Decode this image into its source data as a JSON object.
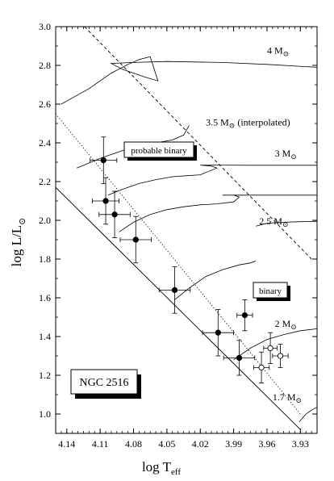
{
  "chart_data": {
    "type": "scatter",
    "title": "",
    "xlabel_main": "log T",
    "xlabel_sub": "eff",
    "ylabel_main": "log L/L",
    "ylabel_sub": "⊙",
    "xlim": [
      4.15,
      3.915
    ],
    "ylim": [
      0.9,
      3.0
    ],
    "x_tick_values": [
      4.14,
      4.11,
      4.08,
      4.05,
      4.02,
      3.99,
      3.96,
      3.93
    ],
    "x_tick_labels": [
      "4.14",
      "4.11",
      "4.08",
      "4.05",
      "4.02",
      "3.99",
      "3.96",
      "3.93"
    ],
    "y_tick_values": [
      1.0,
      1.2,
      1.4,
      1.6,
      1.8,
      2.0,
      2.2,
      2.4,
      2.6,
      2.8,
      3.0
    ],
    "y_tick_labels": [
      "1.0",
      "1.2",
      "1.4",
      "1.6",
      "1.8",
      "2.0",
      "2.2",
      "2.4",
      "2.6",
      "2.8",
      "3.0"
    ],
    "grid": false,
    "legend": "none",
    "annotations": {
      "cluster": "NGC 2516",
      "probable_binary": "probable binary",
      "binary": "binary"
    },
    "track_labels": [
      {
        "text": "4 M",
        "sub": "⊙",
        "x": 3.96,
        "y": 2.86
      },
      {
        "text": "3.5 M",
        "sub": "⊙",
        "suffix": "  (interpolated)",
        "x": 4.015,
        "y": 2.49
      },
      {
        "text": "3 M",
        "sub": "⊙",
        "x": 3.953,
        "y": 2.33
      },
      {
        "text": "2.5 M",
        "sub": "⊙",
        "x": 3.967,
        "y": 1.98
      },
      {
        "text": "2 M",
        "sub": "⊙",
        "x": 3.953,
        "y": 1.45
      },
      {
        "text": "1.7 M",
        "sub": "⊙",
        "x": 3.955,
        "y": 1.07
      }
    ],
    "series": [
      {
        "marker": "filled",
        "points": [
          {
            "x": 4.107,
            "y": 2.31,
            "xerr": 0.012,
            "yerr": 0.12
          },
          {
            "x": 4.105,
            "y": 2.1,
            "xerr": 0.012,
            "yerr": 0.12
          },
          {
            "x": 4.097,
            "y": 2.03,
            "xerr": 0.014,
            "yerr": 0.12
          },
          {
            "x": 4.078,
            "y": 1.9,
            "xerr": 0.014,
            "yerr": 0.12
          },
          {
            "x": 4.043,
            "y": 1.64,
            "xerr": 0.014,
            "yerr": 0.12
          },
          {
            "x": 4.004,
            "y": 1.42,
            "xerr": 0.014,
            "yerr": 0.12
          },
          {
            "x": 3.98,
            "y": 1.51,
            "xerr": 0.007,
            "yerr": 0.08
          },
          {
            "x": 3.985,
            "y": 1.29,
            "xerr": 0.014,
            "yerr": 0.09
          }
        ]
      },
      {
        "marker": "open",
        "points": [
          {
            "x": 3.957,
            "y": 1.34,
            "xerr": 0.006,
            "yerr": 0.08
          },
          {
            "x": 3.965,
            "y": 1.24,
            "xerr": 0.007,
            "yerr": 0.08
          },
          {
            "x": 3.948,
            "y": 1.3,
            "xerr": 0.007,
            "yerr": 0.06
          }
        ]
      }
    ],
    "lines": [
      {
        "name": "zams",
        "style": "solid",
        "points": [
          [
            4.15,
            2.17
          ],
          [
            3.93,
            0.92
          ]
        ]
      },
      {
        "name": "dotted",
        "style": "dotted",
        "points": [
          [
            4.15,
            2.55
          ],
          [
            3.93,
            1.0
          ]
        ]
      },
      {
        "name": "dashed",
        "style": "dashed",
        "points": [
          [
            4.124,
            3.0
          ],
          [
            3.92,
            1.8
          ]
        ]
      }
    ],
    "tracks": [
      {
        "mass": "4",
        "points": [
          [
            4.145,
            2.6
          ],
          [
            4.12,
            2.68
          ],
          [
            4.1,
            2.76
          ],
          [
            4.085,
            2.805
          ],
          [
            4.075,
            2.83
          ],
          [
            4.065,
            2.845
          ],
          [
            4.058,
            2.72
          ],
          [
            4.07,
            2.74
          ],
          [
            4.08,
            2.76
          ],
          [
            4.09,
            2.78
          ],
          [
            4.1,
            2.81
          ],
          [
            4.08,
            2.815
          ],
          [
            4.05,
            2.82
          ],
          [
            4.0,
            2.815
          ],
          [
            3.96,
            2.805
          ],
          [
            3.915,
            2.79
          ]
        ]
      },
      {
        "mass": "3.5",
        "points": [
          [
            4.131,
            2.27
          ],
          [
            4.11,
            2.32
          ],
          [
            4.09,
            2.36
          ],
          [
            4.075,
            2.385
          ],
          [
            4.06,
            2.4
          ],
          [
            4.045,
            2.415
          ],
          [
            4.035,
            2.44
          ],
          [
            4.03,
            2.49
          ]
        ]
      },
      {
        "mass": "3",
        "points": [
          [
            4.103,
            2.13
          ],
          [
            4.09,
            2.16
          ],
          [
            4.075,
            2.19
          ],
          [
            4.06,
            2.21
          ],
          [
            4.045,
            2.225
          ],
          [
            4.033,
            2.23
          ],
          [
            4.02,
            2.235
          ],
          [
            4.005,
            2.27
          ],
          [
            4.01,
            2.28
          ],
          [
            4.02,
            2.285
          ],
          [
            4.0,
            2.285
          ],
          [
            3.97,
            2.284
          ],
          [
            3.94,
            2.284
          ],
          [
            3.915,
            2.284
          ]
        ]
      },
      {
        "mass": "2.5",
        "points": [
          [
            4.093,
            1.94
          ],
          [
            4.08,
            1.99
          ],
          [
            4.065,
            2.03
          ],
          [
            4.05,
            2.055
          ],
          [
            4.035,
            2.07
          ],
          [
            4.02,
            2.08
          ],
          [
            4.005,
            2.085
          ],
          [
            3.99,
            2.095
          ],
          [
            3.985,
            2.12
          ],
          [
            3.99,
            2.13
          ],
          [
            4.0,
            2.13
          ],
          [
            3.985,
            2.13
          ],
          [
            3.96,
            2.13
          ],
          [
            3.94,
            2.13
          ],
          [
            3.915,
            2.13
          ]
        ]
      },
      {
        "mass": "2.5b",
        "points": [
          [
            3.97,
            1.97
          ],
          [
            3.96,
            1.985
          ],
          [
            3.945,
            1.99
          ],
          [
            3.93,
            1.993
          ],
          [
            3.915,
            1.995
          ]
        ]
      },
      {
        "mass": "2",
        "points": [
          [
            4.043,
            1.59
          ],
          [
            4.03,
            1.65
          ],
          [
            4.015,
            1.71
          ],
          [
            4.0,
            1.745
          ],
          [
            3.985,
            1.77
          ],
          [
            3.975,
            1.78
          ],
          [
            3.97,
            1.79
          ]
        ]
      },
      {
        "mass": "2b",
        "points": [
          [
            3.99,
            1.28
          ],
          [
            3.975,
            1.34
          ],
          [
            3.96,
            1.385
          ],
          [
            3.945,
            1.41
          ],
          [
            3.93,
            1.43
          ],
          [
            3.915,
            1.44
          ]
        ]
      },
      {
        "mass": "1.7",
        "points": [
          [
            3.931,
            0.96
          ],
          [
            3.925,
            1.0
          ],
          [
            3.92,
            1.02
          ],
          [
            3.915,
            1.035
          ]
        ]
      }
    ]
  }
}
